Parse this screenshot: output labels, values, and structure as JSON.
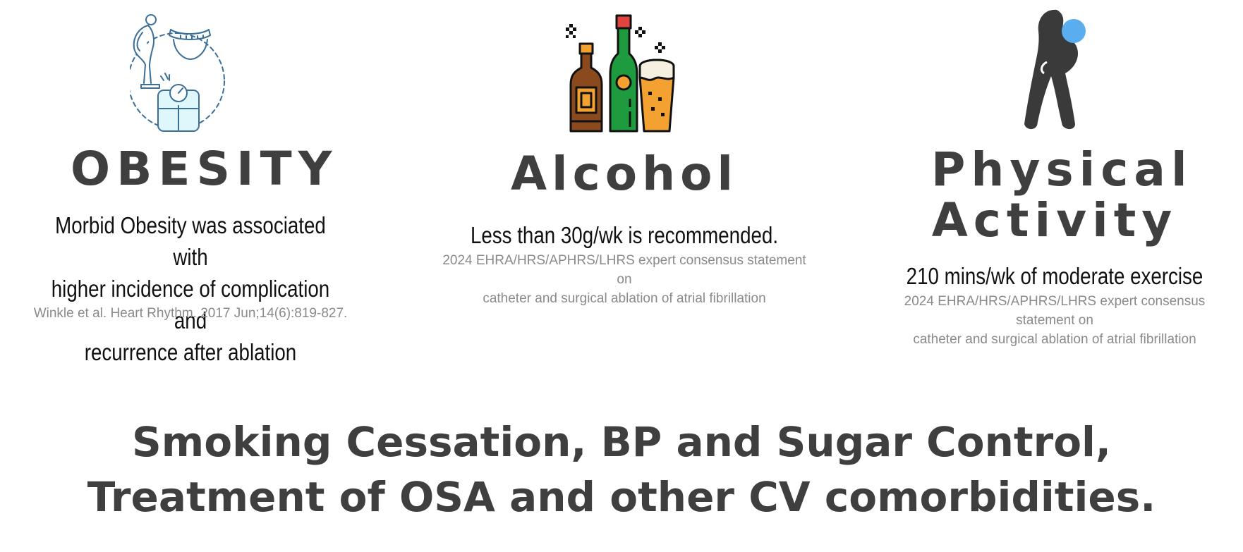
{
  "obesity": {
    "title": "OBESITY",
    "desc_lines": [
      "Morbid Obesity was associated with",
      "higher incidence of complication and",
      "recurrence after ablation"
    ],
    "citation": "Winkle et al. Heart Rhythm. 2017 Jun;14(6):819-827.",
    "icon": "weight-scale-icon"
  },
  "alcohol": {
    "title": "Alcohol",
    "desc": "Less than 30g/wk is recommended.",
    "citation_lines": [
      "2024 EHRA/HRS/APHRS/LHRS expert consensus statement on",
      "catheter and surgical ablation of atrial fibrillation"
    ],
    "icon": "alcohol-bottles-icon"
  },
  "physical_activity": {
    "title_lines": [
      "Physical",
      "Activity"
    ],
    "desc": "210 mins/wk of moderate exercise",
    "citation_lines": [
      "2024 EHRA/HRS/APHRS/LHRS expert consensus statement on",
      "catheter and surgical ablation of atrial fibrillation"
    ],
    "icon": "exercise-person-icon"
  },
  "bottom": {
    "lines": [
      "Smoking Cessation, BP and Sugar Control,",
      "Treatment of OSA and other CV comorbidities."
    ]
  },
  "colors": {
    "title_text": "#3f3f3f",
    "body_text": "#111111",
    "citation_text": "#8a8a8a",
    "obesity_icon": "#3a6f9a",
    "obesity_scale_fill": "#dff6fb",
    "bottle_brown": "#8a4a1e",
    "bottle_green": "#1e9a3f",
    "beer_orange": "#f3a231",
    "cap_red": "#e0443e",
    "figure_dark": "#3a3a3a",
    "figure_head": "#5aaef0"
  }
}
